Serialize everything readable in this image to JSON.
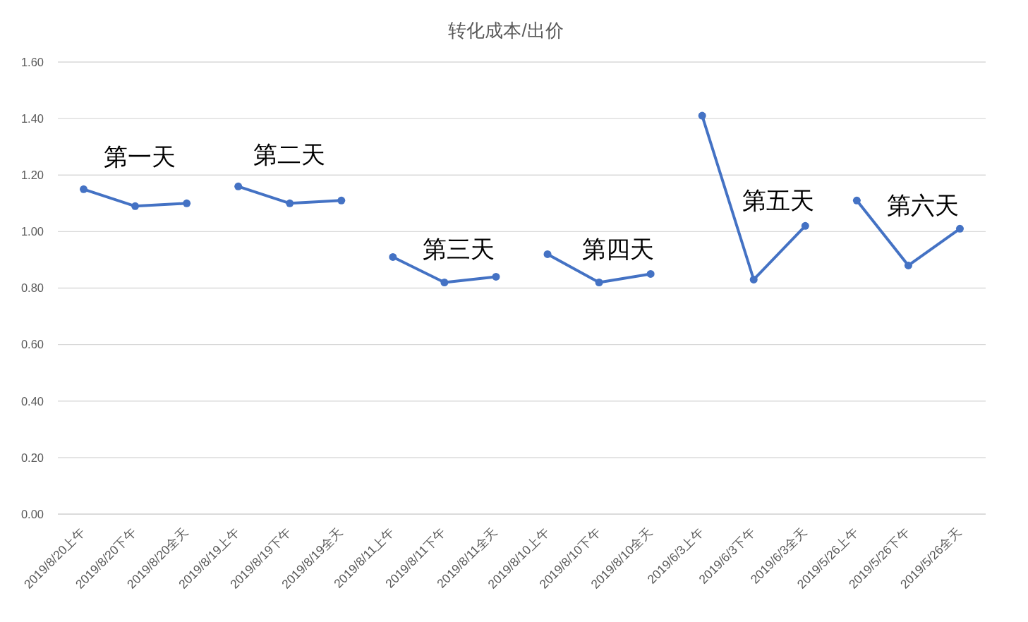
{
  "chart_data": {
    "type": "line",
    "title": "转化成本/出价",
    "categories": [
      "2019/8/20上午",
      "2019/8/20下午",
      "2019/8/20全天",
      "2019/8/19上午",
      "2019/8/19下午",
      "2019/8/19全天",
      "2019/8/11上午",
      "2019/8/11下午",
      "2019/8/11全天",
      "2019/8/10上午",
      "2019/8/10下午",
      "2019/8/10全天",
      "2019/6/3上午",
      "2019/6/3下午",
      "2019/6/3全天",
      "2019/5/26上午",
      "2019/5/26下午",
      "2019/5/26全天"
    ],
    "series": [
      {
        "color": "#4472c4",
        "values": [
          1.15,
          1.09,
          1.1,
          null,
          null,
          null,
          null,
          null,
          null,
          null,
          null,
          null,
          null,
          null,
          null,
          null,
          null,
          null
        ]
      },
      {
        "color": "#4472c4",
        "values": [
          null,
          null,
          null,
          1.16,
          1.1,
          1.11,
          null,
          null,
          null,
          null,
          null,
          null,
          null,
          null,
          null,
          null,
          null,
          null
        ]
      },
      {
        "color": "#4472c4",
        "values": [
          null,
          null,
          null,
          null,
          null,
          null,
          0.91,
          0.82,
          0.84,
          null,
          null,
          null,
          null,
          null,
          null,
          null,
          null,
          null
        ]
      },
      {
        "color": "#4472c4",
        "values": [
          null,
          null,
          null,
          null,
          null,
          null,
          null,
          null,
          null,
          0.92,
          0.82,
          0.85,
          null,
          null,
          null,
          null,
          null,
          null
        ]
      },
      {
        "color": "#4472c4",
        "values": [
          null,
          null,
          null,
          null,
          null,
          null,
          null,
          null,
          null,
          null,
          null,
          null,
          1.41,
          0.83,
          1.02,
          null,
          null,
          null
        ]
      },
      {
        "color": "#4472c4",
        "values": [
          null,
          null,
          null,
          null,
          null,
          null,
          null,
          null,
          null,
          null,
          null,
          null,
          null,
          null,
          null,
          1.11,
          0.88,
          1.01
        ]
      }
    ],
    "ylim": [
      0,
      1.6
    ],
    "yticks": [
      {
        "value": 0,
        "label": "0.00"
      },
      {
        "value": 0.2,
        "label": "0.20"
      },
      {
        "value": 0.4,
        "label": "0.40"
      },
      {
        "value": 0.6,
        "label": "0.60"
      },
      {
        "value": 0.8,
        "label": "0.80"
      },
      {
        "value": 1,
        "label": "1.00"
      },
      {
        "value": 1.2,
        "label": "1.20"
      },
      {
        "value": 1.4,
        "label": "1.40"
      },
      {
        "value": 1.6,
        "label": "1.60"
      }
    ],
    "grid": "y",
    "marker": "circle",
    "line_style": "solid",
    "annotations": [
      "第一天",
      "第二天",
      "第三天",
      "第四天",
      "第五天",
      "第六天"
    ]
  }
}
